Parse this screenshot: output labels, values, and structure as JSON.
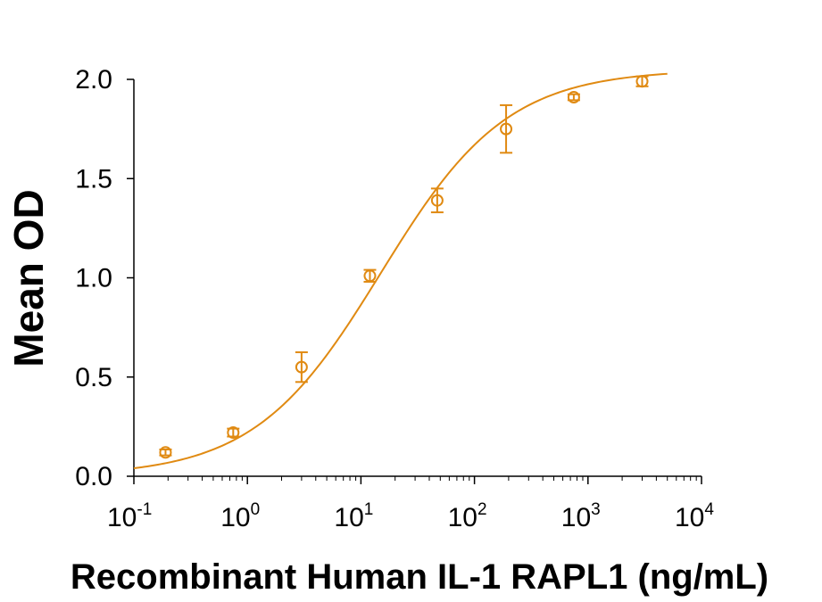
{
  "chart_data": {
    "type": "scatter",
    "title": "",
    "xlabel": "Recombinant Human IL-1 RAPL1 (ng/mL)",
    "ylabel": "Mean OD",
    "x_scale": "log",
    "xlim": [
      0.1,
      10000
    ],
    "ylim": [
      0.0,
      2.0
    ],
    "y_ticks": [
      "0.0",
      "0.5",
      "1.0",
      "1.5",
      "2.0"
    ],
    "x_ticks": [
      {
        "base": "10",
        "exp": "-1",
        "value": 0.1
      },
      {
        "base": "10",
        "exp": "0",
        "value": 1
      },
      {
        "base": "10",
        "exp": "1",
        "value": 10
      },
      {
        "base": "10",
        "exp": "2",
        "value": 100
      },
      {
        "base": "10",
        "exp": "3",
        "value": 1000
      },
      {
        "base": "10",
        "exp": "4",
        "value": 10000
      }
    ],
    "grid": false,
    "legend": "none",
    "color": "#E08A12",
    "series": [
      {
        "x": [
          0.19,
          0.75,
          3.0,
          12.0,
          47.0,
          190.0,
          750.0,
          3000.0
        ],
        "y": [
          0.12,
          0.22,
          0.55,
          1.01,
          1.39,
          1.75,
          1.91,
          1.99
        ],
        "err": [
          0.015,
          0.02,
          0.075,
          0.03,
          0.06,
          0.12,
          0.015,
          0.025
        ]
      }
    ],
    "fit_curve": {
      "model": "4PL",
      "bottom": 0.0,
      "top": 2.05,
      "ec50": 15.0,
      "hill": 0.78,
      "x_range": [
        0.1,
        5000
      ]
    }
  }
}
